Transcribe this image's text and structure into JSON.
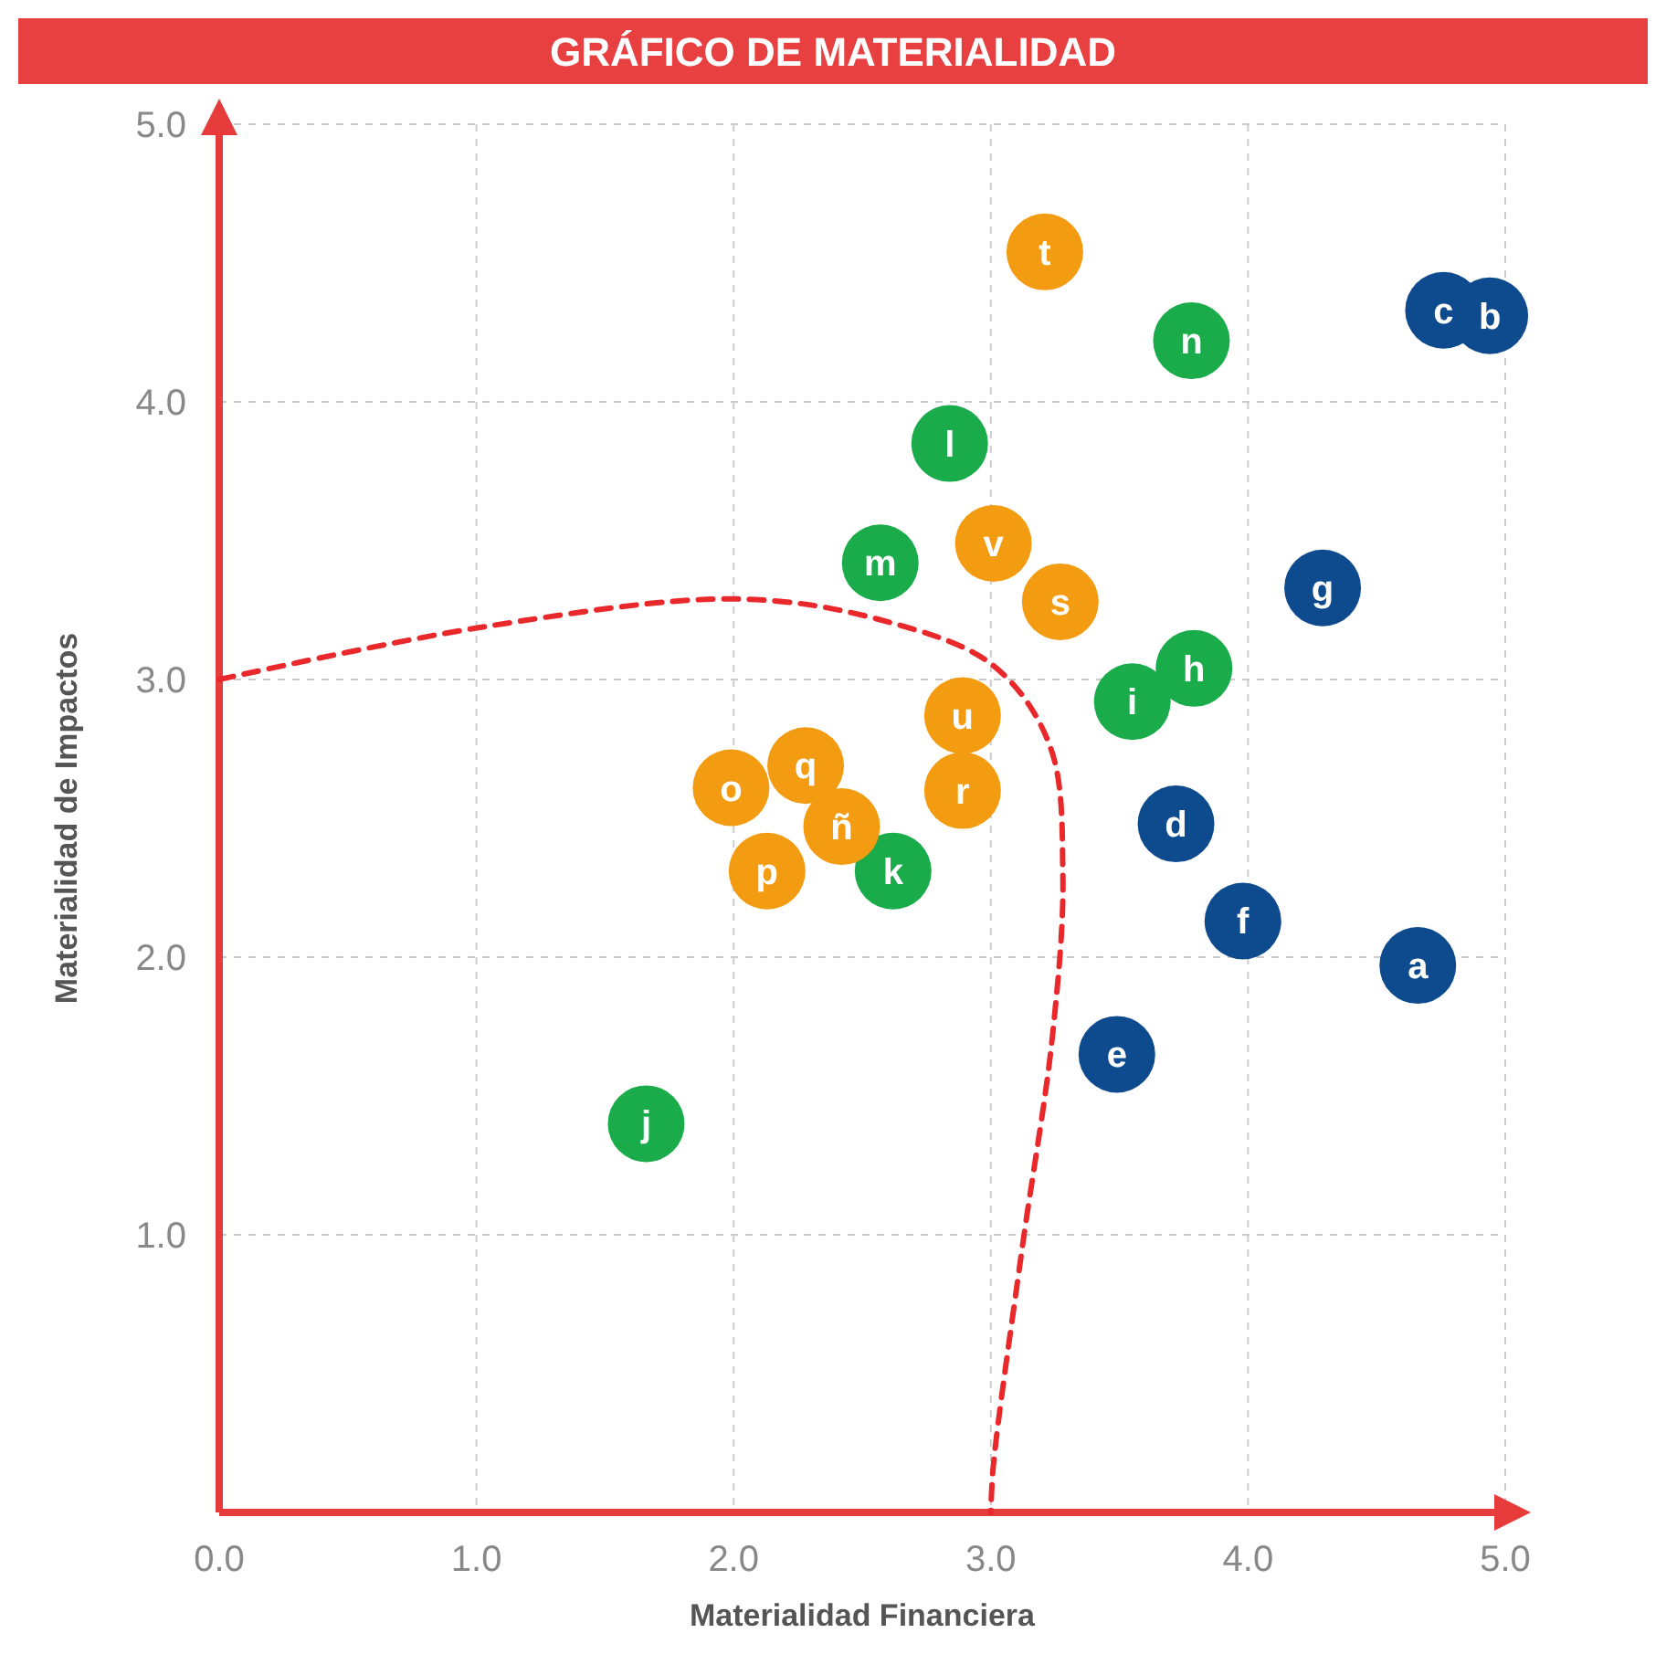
{
  "chart_data": {
    "type": "scatter",
    "title": "GRÁFICO DE MATERIALIDAD",
    "xlabel": "Materialidad Financiera",
    "ylabel": "Materialidad de Impactos",
    "xlim": [
      0,
      5
    ],
    "ylim": [
      0,
      5
    ],
    "xticks": [
      {
        "value": 0,
        "label": "0.0"
      },
      {
        "value": 1,
        "label": "1.0"
      },
      {
        "value": 2,
        "label": "2.0"
      },
      {
        "value": 3,
        "label": "3.0"
      },
      {
        "value": 4,
        "label": "4.0"
      },
      {
        "value": 5,
        "label": "5.0"
      }
    ],
    "yticks": [
      {
        "value": 0,
        "label": null
      },
      {
        "value": 1,
        "label": "1.0"
      },
      {
        "value": 2,
        "label": "2.0"
      },
      {
        "value": 3,
        "label": "3.0"
      },
      {
        "value": 4,
        "label": "4.0"
      },
      {
        "value": 5,
        "label": "5.0"
      }
    ],
    "grid": true,
    "marker": "circle",
    "series": [
      {
        "color": "#0d4b8e",
        "x": [
          4.66,
          4.94,
          4.76,
          3.72,
          3.49,
          3.98,
          4.29
        ],
        "values": [
          1.97,
          4.31,
          4.33,
          2.48,
          1.65,
          2.13,
          3.33
        ]
      },
      {
        "color": "#1aab4b",
        "x": [
          3.79,
          3.55,
          1.66,
          2.62,
          2.84,
          2.57,
          3.78
        ],
        "values": [
          3.04,
          2.92,
          1.4,
          2.31,
          3.85,
          3.42,
          4.22
        ]
      },
      {
        "color": "#f39c12",
        "x": [
          2.42,
          1.99,
          2.13,
          2.28,
          2.89,
          3.27,
          3.21,
          2.89,
          3.01
        ],
        "values": [
          2.47,
          2.61,
          2.31,
          2.69,
          2.6,
          3.28,
          4.54,
          2.87,
          3.49
        ]
      },
      {
        "type": "line",
        "color": "#e8282b",
        "line_style": "dashed",
        "marker": "none",
        "x": [
          0,
          1.03,
          2.02,
          2.59,
          3.01,
          3.23,
          3.28,
          3.24,
          3.12,
          3.01,
          3.0
        ],
        "values": [
          3.0,
          3.19,
          3.29,
          3.21,
          3.05,
          2.76,
          2.3,
          1.72,
          0.94,
          0.17,
          0
        ]
      }
    ],
    "annotations": [
      {
        "text": "a",
        "x": 4.66,
        "y": 1.97
      },
      {
        "text": "b",
        "x": 4.94,
        "y": 4.31
      },
      {
        "text": "c",
        "x": 4.76,
        "y": 4.33
      },
      {
        "text": "d",
        "x": 3.72,
        "y": 2.48
      },
      {
        "text": "e",
        "x": 3.49,
        "y": 1.65
      },
      {
        "text": "f",
        "x": 3.98,
        "y": 2.13
      },
      {
        "text": "g",
        "x": 4.29,
        "y": 3.33
      },
      {
        "text": "h",
        "x": 3.79,
        "y": 3.04
      },
      {
        "text": "i",
        "x": 3.55,
        "y": 2.92
      },
      {
        "text": "j",
        "x": 1.66,
        "y": 1.4
      },
      {
        "text": "k",
        "x": 2.62,
        "y": 2.31
      },
      {
        "text": "l",
        "x": 2.84,
        "y": 3.85
      },
      {
        "text": "m",
        "x": 2.57,
        "y": 3.42
      },
      {
        "text": "n",
        "x": 3.78,
        "y": 4.22
      },
      {
        "text": "ñ",
        "x": 2.42,
        "y": 2.47
      },
      {
        "text": "o",
        "x": 1.99,
        "y": 2.61
      },
      {
        "text": "p",
        "x": 2.13,
        "y": 2.31
      },
      {
        "text": "q",
        "x": 2.28,
        "y": 2.69
      },
      {
        "text": "r",
        "x": 2.89,
        "y": 2.6
      },
      {
        "text": "s",
        "x": 3.27,
        "y": 3.28
      },
      {
        "text": "t",
        "x": 3.21,
        "y": 4.54
      },
      {
        "text": "u",
        "x": 2.89,
        "y": 2.87
      },
      {
        "text": "v",
        "x": 3.01,
        "y": 3.49
      }
    ]
  }
}
